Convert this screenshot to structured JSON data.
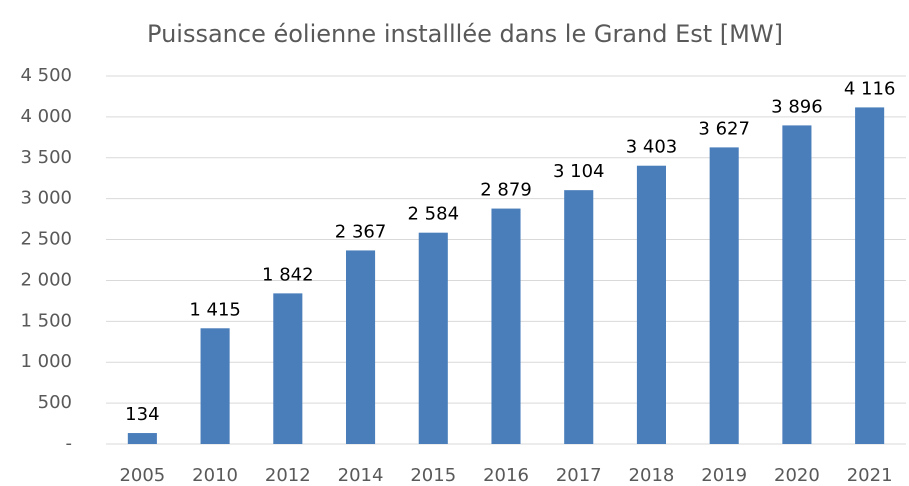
{
  "chart_data": {
    "type": "bar",
    "title": "Puissance éolienne installlée dans le Grand Est [MW]",
    "categories": [
      "2005",
      "2010",
      "2012",
      "2014",
      "2015",
      "2016",
      "2017",
      "2018",
      "2019",
      "2020",
      "2021"
    ],
    "values": [
      134,
      1415,
      1842,
      2367,
      2584,
      2879,
      3104,
      3403,
      3627,
      3896,
      4116
    ],
    "value_labels": [
      "134",
      "1 415",
      "1 842",
      "2 367",
      "2 584",
      "2 879",
      "3 104",
      "3 403",
      "3 627",
      "3 896",
      "4 116"
    ],
    "color": "#4a7ebb",
    "ylim": [
      0,
      4500
    ],
    "yticks": [
      {
        "value": 0,
        "label": "-"
      },
      {
        "value": 500,
        "label": "500"
      },
      {
        "value": 1000,
        "label": "1 000"
      },
      {
        "value": 1500,
        "label": "1 500"
      },
      {
        "value": 2000,
        "label": "2 000"
      },
      {
        "value": 2500,
        "label": "2 500"
      },
      {
        "value": 3000,
        "label": "3 000"
      },
      {
        "value": 3500,
        "label": "3 500"
      },
      {
        "value": 4000,
        "label": "4 000"
      },
      {
        "value": 4500,
        "label": "4 500"
      }
    ],
    "grid": true
  }
}
